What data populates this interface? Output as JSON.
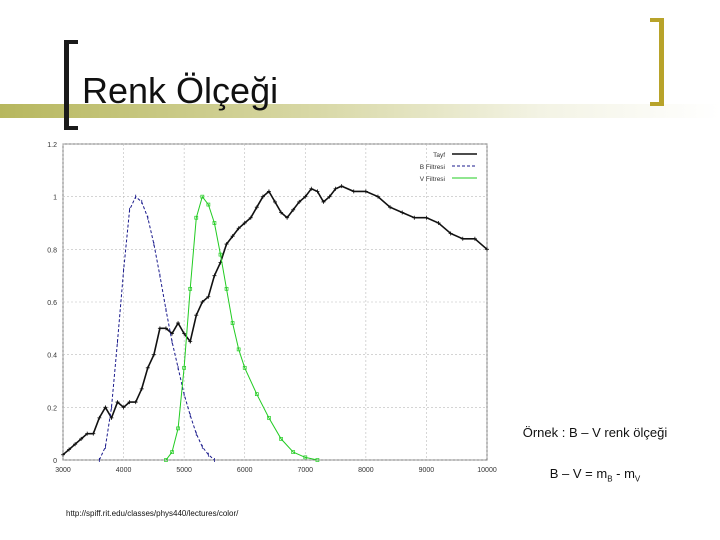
{
  "title": "Renk Ölçeği",
  "source_url": "http://spiff.rit.edu/classes/phys440/lectures/color/",
  "note": {
    "line1": "Örnek : B – V renk ölçeği",
    "line2_prefix": "B – V = m",
    "sub_b": "B",
    "middle": " - m",
    "sub_v": "V"
  },
  "colors": {
    "spectrum": "#111111",
    "b_filter": "#1a1a8c",
    "v_filter": "#22cc22",
    "title_band": "#b7b75e",
    "bracket_right": "#b8a32a"
  },
  "chart_data": {
    "type": "line",
    "xlim": [
      3000,
      10000
    ],
    "ylim": [
      0,
      1.2
    ],
    "x_ticks": [
      "3000",
      "4000",
      "5000",
      "6000",
      "7000",
      "8000",
      "9000",
      "10000"
    ],
    "y_ticks": [
      "0",
      "0.2",
      "0.4",
      "0.6",
      "0.8",
      "1",
      "1.2"
    ],
    "grid": true,
    "legend_position": "top-right",
    "legend": [
      "Tayf",
      "B Filtresi",
      "V Filtresi"
    ],
    "series": [
      {
        "name": "Tayf",
        "color": "#111111",
        "x": [
          3000,
          3100,
          3200,
          3300,
          3400,
          3500,
          3600,
          3700,
          3800,
          3900,
          4000,
          4100,
          4200,
          4300,
          4400,
          4500,
          4600,
          4700,
          4800,
          4900,
          5000,
          5100,
          5200,
          5300,
          5400,
          5500,
          5600,
          5700,
          5800,
          5900,
          6000,
          6100,
          6200,
          6300,
          6400,
          6500,
          6600,
          6700,
          6800,
          6900,
          7000,
          7100,
          7200,
          7300,
          7400,
          7500,
          7600,
          7800,
          8000,
          8200,
          8400,
          8600,
          8800,
          9000,
          9200,
          9400,
          9600,
          9800,
          10000
        ],
        "y": [
          0.02,
          0.04,
          0.06,
          0.08,
          0.1,
          0.1,
          0.16,
          0.2,
          0.16,
          0.22,
          0.2,
          0.22,
          0.22,
          0.27,
          0.35,
          0.4,
          0.5,
          0.5,
          0.48,
          0.52,
          0.48,
          0.45,
          0.55,
          0.6,
          0.62,
          0.7,
          0.75,
          0.82,
          0.85,
          0.88,
          0.9,
          0.92,
          0.96,
          1.0,
          1.02,
          0.98,
          0.94,
          0.92,
          0.95,
          0.98,
          1.0,
          1.03,
          1.02,
          0.98,
          1.0,
          1.03,
          1.04,
          1.02,
          1.02,
          1.0,
          0.96,
          0.94,
          0.92,
          0.92,
          0.9,
          0.86,
          0.84,
          0.84,
          0.8
        ]
      },
      {
        "name": "B Filtresi",
        "color": "#1a1a8c",
        "x": [
          3600,
          3700,
          3800,
          3900,
          4000,
          4100,
          4200,
          4300,
          4400,
          4500,
          4600,
          4700,
          4800,
          4900,
          5000,
          5100,
          5200,
          5300,
          5400,
          5500
        ],
        "y": [
          0.0,
          0.05,
          0.2,
          0.45,
          0.72,
          0.95,
          1.0,
          0.98,
          0.92,
          0.82,
          0.7,
          0.57,
          0.45,
          0.35,
          0.25,
          0.17,
          0.1,
          0.05,
          0.02,
          0.0
        ]
      },
      {
        "name": "V Filtresi",
        "color": "#22cc22",
        "x": [
          4700,
          4800,
          4900,
          5000,
          5100,
          5200,
          5300,
          5400,
          5500,
          5600,
          5700,
          5800,
          5900,
          6000,
          6200,
          6400,
          6600,
          6800,
          7000,
          7200
        ],
        "y": [
          0.0,
          0.03,
          0.12,
          0.35,
          0.65,
          0.92,
          1.0,
          0.97,
          0.9,
          0.78,
          0.65,
          0.52,
          0.42,
          0.35,
          0.25,
          0.16,
          0.08,
          0.03,
          0.01,
          0.0
        ]
      }
    ]
  }
}
